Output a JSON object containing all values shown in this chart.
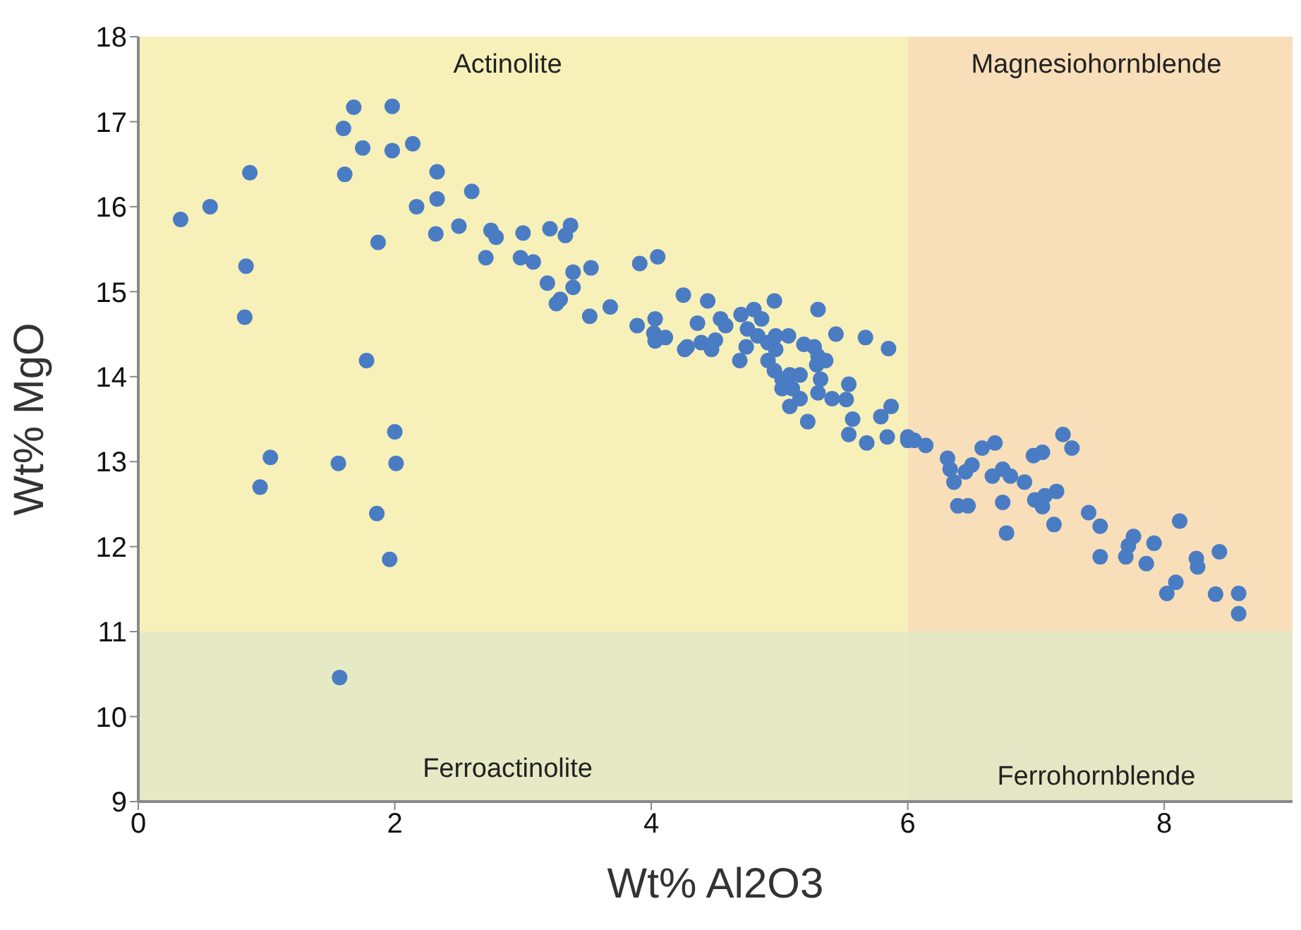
{
  "chart_data": {
    "type": "scatter",
    "xlabel": "Wt% Al2O3",
    "ylabel": "Wt% MgO",
    "xlim": [
      0,
      9
    ],
    "ylim": [
      9,
      18
    ],
    "xticks": [
      0,
      2,
      4,
      6,
      8
    ],
    "yticks": [
      9,
      10,
      11,
      12,
      13,
      14,
      15,
      16,
      17,
      18
    ],
    "grid": false,
    "marker": "circle",
    "bands": [
      {
        "axis": "x",
        "from": 0,
        "to": 6,
        "color": "#f7f0b9"
      },
      {
        "axis": "x",
        "from": 6,
        "to": 9,
        "color": "#f8dfb9"
      },
      {
        "axis": "y",
        "from": 9,
        "to": 11,
        "color": "#e2e9c6"
      }
    ],
    "annotations": [
      "Actinolite",
      "Magnesiohornblende",
      "Ferroactinolite",
      "Ferrohornblende"
    ],
    "series": [
      {
        "color": "#4a7cc4",
        "x": [
          0.33,
          0.56,
          0.87,
          0.84,
          0.83,
          1.03,
          0.95,
          1.56,
          1.57,
          1.78,
          2.0,
          2.01,
          1.86,
          1.96,
          1.87,
          1.68,
          1.98,
          1.6,
          1.75,
          1.98,
          2.14,
          1.61,
          2.33,
          2.33,
          2.17,
          2.32,
          2.5,
          2.6,
          2.75,
          2.79,
          2.71,
          3.0,
          3.21,
          3.37,
          3.33,
          2.98,
          3.08,
          3.53,
          3.39,
          3.19,
          3.39,
          3.29,
          3.26,
          3.68,
          3.52,
          3.91,
          4.05,
          4.25,
          3.89,
          4.03,
          4.02,
          4.11,
          4.03,
          4.26,
          4.44,
          4.96,
          5.3,
          4.36,
          4.54,
          4.58,
          4.28,
          4.39,
          4.47,
          4.5,
          4.69,
          4.7,
          4.8,
          4.86,
          4.75,
          4.83,
          4.91,
          4.74,
          4.97,
          5.07,
          4.97,
          4.91,
          4.96,
          5.02,
          5.08,
          5.16,
          5.02,
          5.1,
          5.16,
          5.08,
          5.19,
          5.27,
          5.3,
          5.36,
          5.29,
          5.32,
          5.3,
          5.41,
          5.52,
          5.54,
          5.44,
          5.67,
          5.85,
          5.22,
          5.57,
          5.54,
          5.68,
          5.84,
          5.79,
          5.87,
          6.0,
          6.0,
          6.05,
          6.14,
          6.31,
          6.33,
          6.36,
          6.45,
          6.5,
          6.39,
          6.47,
          6.58,
          6.68,
          6.66,
          6.74,
          6.8,
          6.91,
          6.74,
          6.77,
          6.98,
          7.05,
          7.21,
          7.28,
          6.99,
          7.07,
          7.16,
          7.05,
          7.14,
          7.41,
          7.5,
          7.5,
          7.76,
          7.72,
          7.7,
          7.86,
          7.92,
          8.12,
          8.09,
          8.02,
          8.25,
          8.26,
          8.43,
          8.4,
          8.58,
          8.58
        ],
        "values": [
          15.85,
          16.0,
          16.4,
          15.3,
          14.7,
          13.05,
          12.7,
          12.98,
          10.46,
          14.19,
          13.35,
          12.98,
          12.39,
          11.85,
          15.58,
          17.17,
          17.18,
          16.92,
          16.69,
          16.66,
          16.74,
          16.38,
          16.41,
          16.09,
          16.0,
          15.68,
          15.77,
          16.18,
          15.72,
          15.64,
          15.4,
          15.69,
          15.74,
          15.78,
          15.66,
          15.4,
          15.35,
          15.28,
          15.23,
          15.1,
          15.05,
          14.91,
          14.86,
          14.82,
          14.71,
          15.33,
          15.41,
          14.96,
          14.6,
          14.68,
          14.51,
          14.46,
          14.42,
          14.32,
          14.89,
          14.89,
          14.79,
          14.63,
          14.68,
          14.6,
          14.35,
          14.4,
          14.32,
          14.43,
          14.19,
          14.73,
          14.79,
          14.68,
          14.56,
          14.48,
          14.4,
          14.35,
          14.48,
          14.48,
          14.32,
          14.19,
          14.07,
          13.97,
          14.02,
          14.02,
          13.86,
          13.86,
          13.74,
          13.65,
          14.38,
          14.35,
          14.24,
          14.19,
          14.14,
          13.97,
          13.81,
          13.74,
          13.73,
          13.91,
          14.5,
          14.46,
          14.33,
          13.47,
          13.5,
          13.32,
          13.22,
          13.29,
          13.53,
          13.65,
          13.25,
          13.29,
          13.25,
          13.19,
          13.04,
          12.91,
          12.76,
          12.88,
          12.96,
          12.48,
          12.48,
          13.16,
          13.22,
          12.83,
          12.91,
          12.83,
          12.76,
          12.52,
          12.16,
          13.07,
          13.11,
          13.32,
          13.16,
          12.55,
          12.6,
          12.65,
          12.47,
          12.26,
          12.4,
          12.24,
          11.88,
          12.12,
          12.01,
          11.88,
          11.8,
          12.04,
          12.3,
          11.58,
          11.45,
          11.86,
          11.76,
          11.94,
          11.44,
          11.45,
          11.21
        ]
      }
    ]
  }
}
